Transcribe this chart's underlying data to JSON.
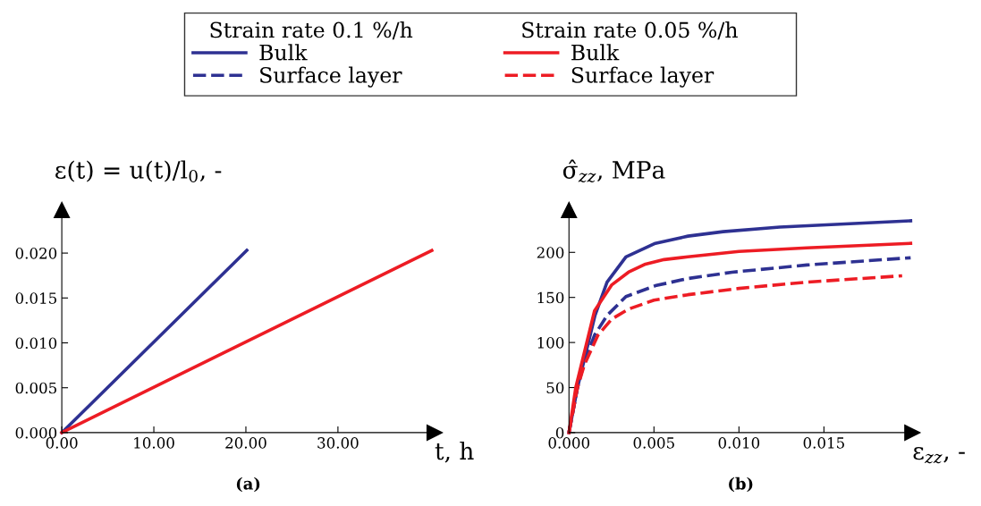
{
  "chart_data": [
    {
      "type": "line",
      "xlabel": "t, h",
      "ylabel": "ε(t) = u(t)/l$_{0}$, -",
      "annotations": [
        "(a)"
      ],
      "xlim": [
        0,
        40.5
      ],
      "ylim": [
        0,
        0.0248
      ],
      "xticks": [
        {
          "value": 0,
          "label": "0.00"
        },
        {
          "value": 10,
          "label": "10.00"
        },
        {
          "value": 20,
          "label": "20.00"
        },
        {
          "value": 30,
          "label": "30.00"
        }
      ],
      "yticks": [
        {
          "value": 0,
          "label": "0.000"
        },
        {
          "value": 0.005,
          "label": "0.005"
        },
        {
          "value": 0.01,
          "label": "0.010"
        },
        {
          "value": 0.015,
          "label": "0.015"
        },
        {
          "value": 0.02,
          "label": "0.020"
        }
      ],
      "grid": false,
      "series": [
        {
          "color": "#2e3192",
          "line_style": "solid",
          "x": [
            0,
            20.1
          ],
          "values": [
            0,
            0.0203
          ]
        },
        {
          "color": "#ed1c24",
          "line_style": "solid",
          "x": [
            0,
            40.2
          ],
          "values": [
            0,
            0.0203
          ]
        }
      ]
    },
    {
      "type": "line",
      "xlabel": "ε$_{zz}$, -",
      "ylabel": "σ̂$_{zz}$, MPa",
      "annotations": [
        "(b)"
      ],
      "legend": "top",
      "legend_title": [
        "Strain rate 0.1 %/h",
        "Strain rate 0.05 %/h"
      ],
      "xlim": [
        0,
        0.0202
      ],
      "ylim": [
        0,
        247
      ],
      "xticks": [
        {
          "value": 0,
          "label": "0.000"
        },
        {
          "value": 0.005,
          "label": "0.005"
        },
        {
          "value": 0.01,
          "label": "0.010"
        },
        {
          "value": 0.015,
          "label": "0.015"
        }
      ],
      "yticks": [
        0,
        50,
        100,
        150,
        200
      ],
      "grid": false,
      "series": [
        {
          "name": "Bulk",
          "color": "#2e3192",
          "line_style": "solid",
          "x": [
            0,
            0.0005,
            0.00153,
            0.00224,
            0.00335,
            0.00508,
            0.007,
            0.00907,
            0.0124,
            0.0201
          ],
          "values": [
            0,
            50,
            130,
            167,
            195,
            210,
            218,
            223,
            228,
            235
          ]
        },
        {
          "name": "Surface layer",
          "color": "#2e3192",
          "line_style": "dashed",
          "x": [
            0,
            0.0005,
            0.0009,
            0.0015,
            0.00224,
            0.00335,
            0.00508,
            0.007,
            0.0096,
            0.014,
            0.0201
          ],
          "values": [
            0,
            50,
            78,
            108,
            130,
            151,
            163,
            171,
            178,
            186,
            194
          ]
        },
        {
          "name": "Bulk",
          "color": "#ed1c24",
          "line_style": "solid",
          "x": [
            0,
            0.0004,
            0.0015,
            0.00252,
            0.0035,
            0.0045,
            0.0056,
            0.007,
            0.01,
            0.014,
            0.0201
          ],
          "values": [
            0,
            50,
            135,
            164,
            178,
            187,
            192,
            195,
            201,
            205,
            210
          ]
        },
        {
          "name": "Surface layer",
          "color": "#ed1c24",
          "line_style": "dashed",
          "x": [
            0,
            0.0005,
            0.0009,
            0.0017,
            0.00252,
            0.0035,
            0.005,
            0.007,
            0.01,
            0.014,
            0.0196
          ],
          "values": [
            0,
            50,
            75,
            108,
            126,
            137,
            147,
            153,
            160,
            167,
            174
          ]
        }
      ]
    }
  ]
}
